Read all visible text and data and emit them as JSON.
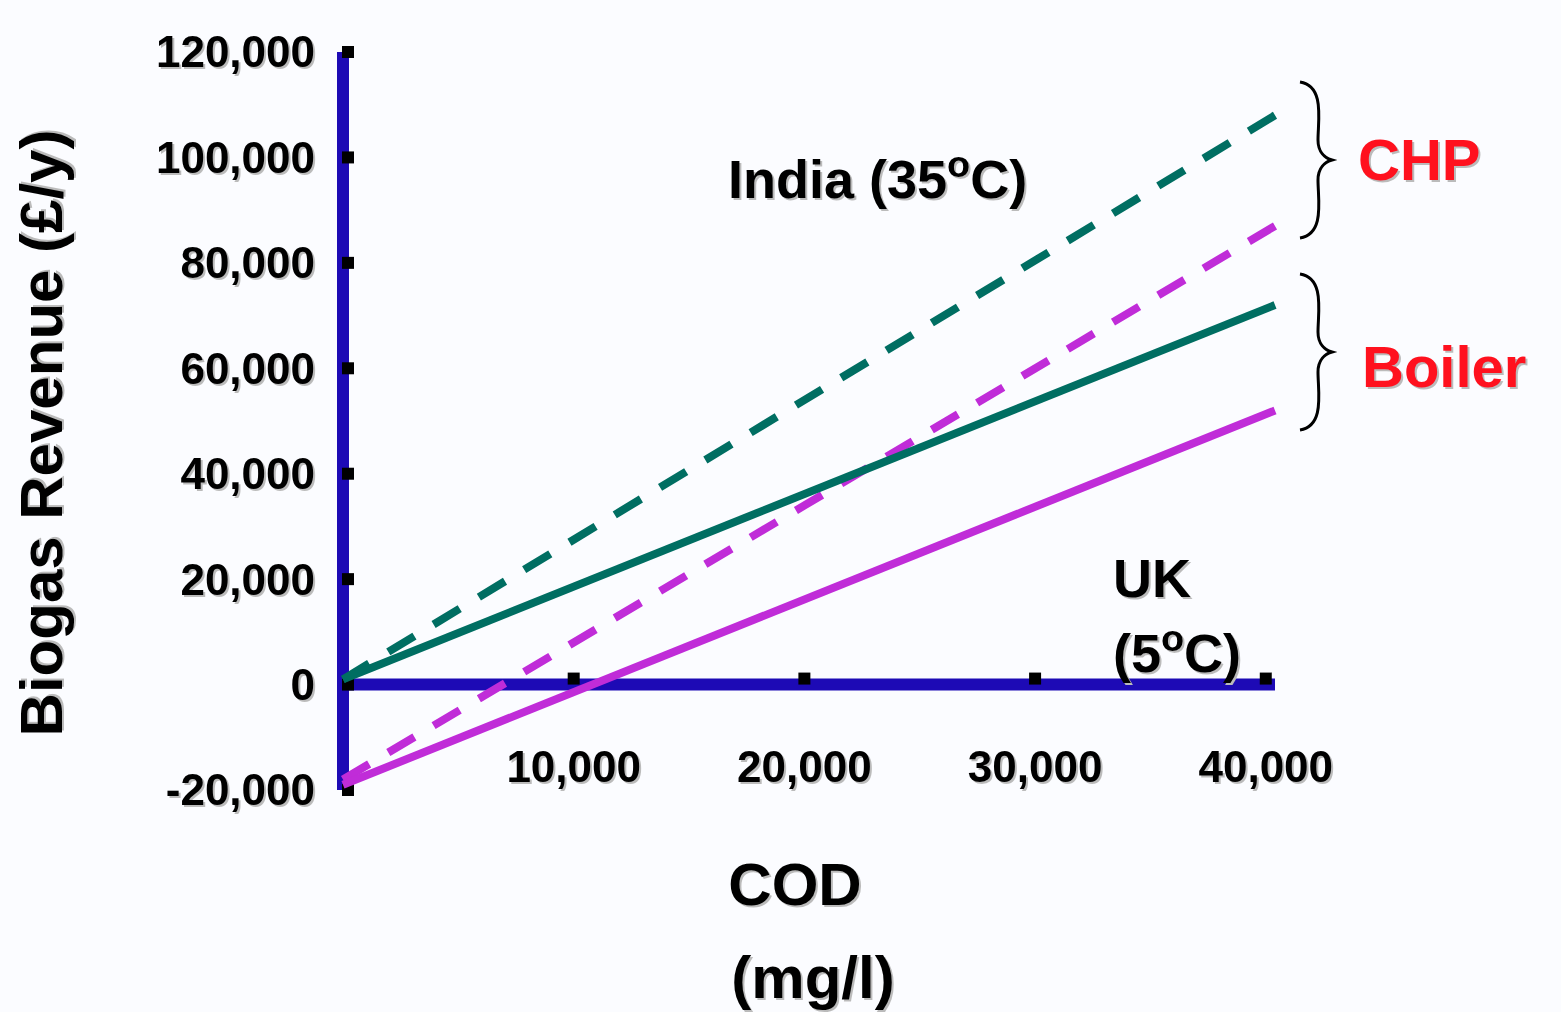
{
  "chart_data": {
    "type": "line",
    "xlabel": "COD (mg/l)",
    "ylabel": "Biogas Revenue (£/y)",
    "xlim": [
      0,
      40400
    ],
    "ylim": [
      -20000,
      120000
    ],
    "xticks": [
      {
        "value": 10000,
        "label": "10,000"
      },
      {
        "value": 20000,
        "label": "20,000"
      },
      {
        "value": 30000,
        "label": "30,000"
      },
      {
        "value": 40000,
        "label": "40,000"
      }
    ],
    "yticks": [
      {
        "value": -20000,
        "label": "-20,000"
      },
      0,
      {
        "value": 20000,
        "label": "20,000"
      },
      {
        "value": 40000,
        "label": "40,000"
      },
      {
        "value": 60000,
        "label": "60,000"
      },
      {
        "value": 80000,
        "label": "80,000"
      },
      {
        "value": 100000,
        "label": "100,000"
      },
      {
        "value": 120000,
        "label": "120,000"
      }
    ],
    "x": [
      0,
      40400
    ],
    "series": [
      {
        "color": "#006e62",
        "line_style": "dashed",
        "values": [
          1000,
          108000
        ]
      },
      {
        "color": "#c02cd8",
        "line_style": "dashed",
        "values": [
          -18000,
          87000
        ]
      },
      {
        "color": "#006e62",
        "line_style": "solid",
        "values": [
          1000,
          72000
        ]
      },
      {
        "color": "#c02cd8",
        "line_style": "solid",
        "values": [
          -19000,
          52000
        ]
      }
    ],
    "annotations": [
      "India (35$^{o}$C)",
      "UK (5$^{o}$C)",
      "CHP",
      "Boiler"
    ]
  }
}
